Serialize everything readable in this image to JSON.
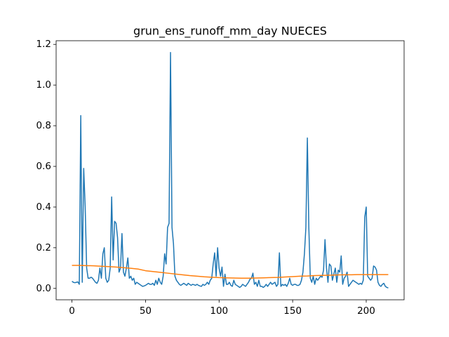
{
  "chart_data": {
    "type": "line",
    "title": "grun_ens_runoff_mm_day NUECES",
    "xlim": [
      -10.75,
      225.75
    ],
    "xticks": [
      0,
      50,
      100,
      150,
      200
    ],
    "ylim": [
      -0.056,
      1.218
    ],
    "yticks": [
      {
        "value": 0,
        "label": "0.0"
      },
      0.2,
      0.4,
      0.6,
      0.8,
      {
        "value": 1,
        "label": "1.0"
      },
      1.2
    ],
    "grid": false,
    "series": [
      {
        "color": "#1f77b4",
        "x": [
          0,
          1,
          2,
          3,
          4,
          5,
          6,
          7,
          8,
          9,
          10,
          11,
          12,
          13,
          14,
          15,
          16,
          17,
          18,
          19,
          20,
          21,
          22,
          23,
          24,
          25,
          26,
          27,
          28,
          29,
          30,
          31,
          32,
          33,
          34,
          35,
          36,
          37,
          38,
          39,
          40,
          41,
          42,
          43,
          44,
          45,
          46,
          47,
          48,
          49,
          50,
          51,
          52,
          53,
          54,
          55,
          56,
          57,
          58,
          59,
          60,
          61,
          62,
          63,
          64,
          65,
          66,
          67,
          68,
          69,
          70,
          71,
          72,
          73,
          74,
          75,
          76,
          77,
          78,
          79,
          80,
          81,
          82,
          83,
          84,
          85,
          86,
          87,
          88,
          89,
          90,
          91,
          92,
          93,
          94,
          95,
          96,
          97,
          98,
          99,
          100,
          101,
          102,
          103,
          104,
          105,
          106,
          107,
          108,
          109,
          110,
          111,
          112,
          113,
          114,
          115,
          116,
          117,
          118,
          119,
          120,
          121,
          122,
          123,
          124,
          125,
          126,
          127,
          128,
          129,
          130,
          131,
          132,
          133,
          134,
          135,
          136,
          137,
          138,
          139,
          140,
          141,
          142,
          143,
          144,
          145,
          146,
          147,
          148,
          149,
          150,
          151,
          152,
          153,
          154,
          155,
          156,
          157,
          158,
          159,
          160,
          161,
          162,
          163,
          164,
          165,
          166,
          167,
          168,
          169,
          170,
          171,
          172,
          173,
          174,
          175,
          176,
          177,
          178,
          179,
          180,
          181,
          182,
          183,
          184,
          185,
          186,
          187,
          188,
          189,
          190,
          191,
          192,
          193,
          194,
          195,
          196,
          197,
          198,
          199,
          200,
          201,
          202,
          203,
          204,
          205,
          206,
          207,
          208,
          209,
          210,
          211,
          212,
          213,
          214,
          215
        ],
        "values": [
          0.035,
          0.03,
          0.028,
          0.03,
          0.032,
          0.02,
          0.85,
          0.03,
          0.59,
          0.4,
          0.1,
          0.05,
          0.05,
          0.055,
          0.05,
          0.04,
          0.03,
          0.025,
          0.04,
          0.1,
          0.05,
          0.17,
          0.2,
          0.05,
          0.03,
          0.04,
          0.1,
          0.45,
          0.14,
          0.33,
          0.32,
          0.25,
          0.08,
          0.1,
          0.27,
          0.08,
          0.06,
          0.1,
          0.15,
          0.05,
          0.06,
          0.04,
          0.05,
          0.02,
          0.03,
          0.025,
          0.02,
          0.015,
          0.01,
          0.012,
          0.015,
          0.02,
          0.025,
          0.02,
          0.02,
          0.025,
          0.015,
          0.04,
          0.02,
          0.05,
          0.03,
          0.02,
          0.06,
          0.17,
          0.12,
          0.3,
          0.32,
          1.16,
          0.3,
          0.22,
          0.06,
          0.04,
          0.03,
          0.02,
          0.015,
          0.02,
          0.025,
          0.02,
          0.015,
          0.025,
          0.02,
          0.015,
          0.02,
          0.018,
          0.015,
          0.02,
          0.015,
          0.012,
          0.01,
          0.02,
          0.015,
          0.02,
          0.03,
          0.02,
          0.04,
          0.05,
          0.12,
          0.175,
          0.06,
          0.2,
          0.1,
          0.06,
          0.105,
          0.01,
          0.07,
          0.02,
          0.02,
          0.03,
          0.015,
          0.01,
          0.04,
          0.02,
          0.015,
          0.01,
          0.005,
          0.01,
          0.02,
          0.015,
          0.01,
          0.02,
          0.03,
          0.045,
          0.05,
          0.075,
          0.02,
          0.03,
          0.01,
          0.04,
          0.01,
          0.01,
          0.005,
          0.01,
          0.02,
          0.01,
          0.02,
          0.03,
          0.02,
          0.025,
          0.03,
          0.01,
          0.02,
          0.175,
          0.01,
          0.02,
          0.015,
          0.02,
          0.01,
          0.025,
          0.05,
          0.02,
          0.015,
          0.02,
          0.02,
          0.015,
          0.015,
          0.02,
          0.04,
          0.08,
          0.17,
          0.3,
          0.74,
          0.3,
          0.05,
          0.03,
          0.06,
          0.02,
          0.05,
          0.04,
          0.05,
          0.06,
          0.055,
          0.09,
          0.24,
          0.1,
          0.03,
          0.12,
          0.11,
          0.04,
          0.07,
          0.1,
          0.03,
          0.09,
          0.08,
          0.16,
          0.02,
          0.05,
          0.06,
          0.08,
          0.01,
          0.02,
          0.03,
          0.04,
          0.035,
          0.03,
          0.025,
          0.02,
          0.025,
          0.02,
          0.04,
          0.35,
          0.4,
          0.06,
          0.05,
          0.04,
          0.05,
          0.11,
          0.105,
          0.09,
          0.03,
          0.015,
          0.01,
          0.02,
          0.025,
          0.01,
          0.005,
          0.002
        ]
      },
      {
        "color": "#ff7f0e",
        "x": [
          0,
          5,
          10,
          15,
          20,
          25,
          30,
          35,
          40,
          45,
          50,
          55,
          60,
          65,
          70,
          75,
          80,
          85,
          90,
          95,
          100,
          105,
          110,
          115,
          120,
          125,
          130,
          135,
          140,
          145,
          150,
          155,
          160,
          165,
          170,
          175,
          180,
          185,
          190,
          195,
          200,
          205,
          210,
          215
        ],
        "values": [
          0.113,
          0.113,
          0.112,
          0.111,
          0.109,
          0.107,
          0.105,
          0.102,
          0.099,
          0.095,
          0.087,
          0.083,
          0.079,
          0.075,
          0.071,
          0.067,
          0.063,
          0.06,
          0.057,
          0.055,
          0.053,
          0.052,
          0.051,
          0.05,
          0.05,
          0.051,
          0.052,
          0.053,
          0.054,
          0.056,
          0.058,
          0.06,
          0.061,
          0.063,
          0.064,
          0.065,
          0.066,
          0.067,
          0.067,
          0.068,
          0.068,
          0.068,
          0.068,
          0.068
        ]
      }
    ]
  }
}
